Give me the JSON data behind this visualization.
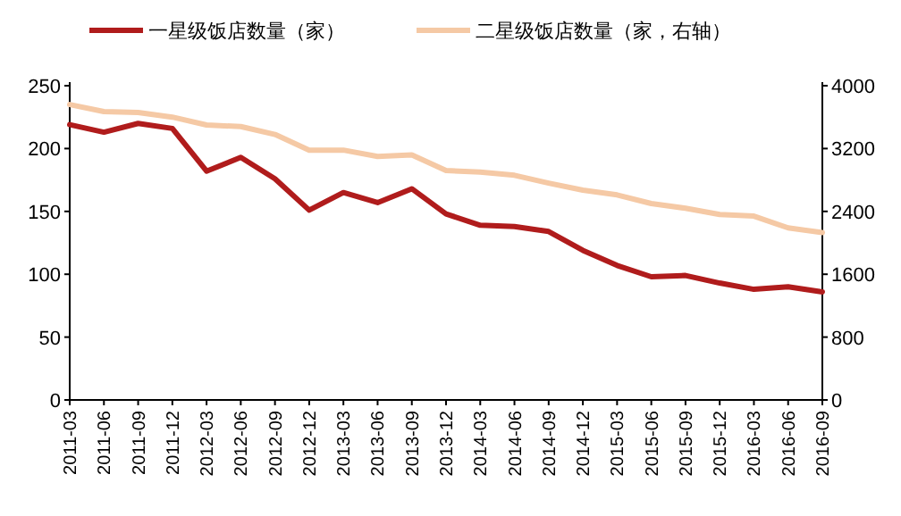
{
  "chart_data": {
    "type": "line",
    "categories": [
      "2011-03",
      "2011-06",
      "2011-09",
      "2011-12",
      "2012-03",
      "2012-06",
      "2012-09",
      "2012-12",
      "2013-03",
      "2013-06",
      "2013-09",
      "2013-12",
      "2014-03",
      "2014-06",
      "2014-09",
      "2014-12",
      "2015-03",
      "2015-06",
      "2015-09",
      "2015-12",
      "2016-03",
      "2016-06",
      "2016-09"
    ],
    "series": [
      {
        "name": "一星级饭店数量（家）",
        "color": "#b01c1c",
        "values": [
          219,
          213,
          220,
          216,
          182,
          193,
          176,
          151,
          165,
          157,
          168,
          148,
          139,
          138,
          134,
          119,
          107,
          98,
          99,
          93,
          88,
          90,
          86
        ]
      },
      {
        "name": "二星级饭店数量（家，右轴）",
        "color": "#f5c9a5",
        "axis": "y2",
        "values": [
          3760,
          3670,
          3660,
          3600,
          3500,
          3480,
          3380,
          3180,
          3180,
          3100,
          3120,
          2920,
          2900,
          2860,
          2760,
          2670,
          2610,
          2500,
          2440,
          2360,
          2340,
          2190,
          2130
        ]
      }
    ],
    "ylim": [
      0,
      250
    ],
    "yticks": [
      0,
      50,
      100,
      150,
      200,
      250
    ],
    "y2lim": [
      0,
      4000
    ],
    "y2ticks": [
      0,
      800,
      1600,
      2400,
      3200,
      4000
    ],
    "grid": false,
    "legend": "top",
    "marker": "none",
    "line_style": "solid"
  }
}
